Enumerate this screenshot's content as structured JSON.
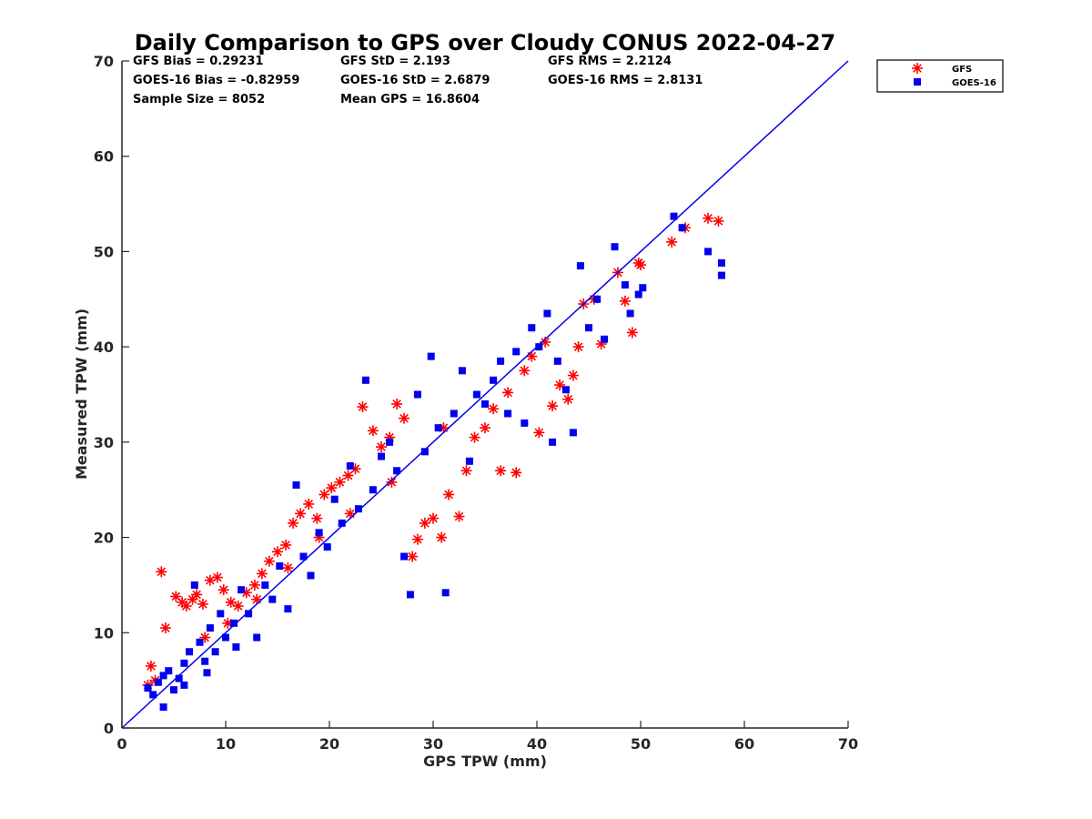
{
  "chart_data": {
    "type": "scatter",
    "title": "Daily Comparison to GPS over Cloudy CONUS 2022-04-27",
    "xlabel": "GPS TPW (mm)",
    "ylabel": "Measured TPW (mm)",
    "xlim": [
      0,
      70
    ],
    "ylim": [
      0,
      70
    ],
    "xticks": [
      "0",
      "10",
      "20",
      "30",
      "40",
      "50",
      "60",
      "70"
    ],
    "yticks": [
      "0",
      "10",
      "20",
      "30",
      "40",
      "50",
      "60",
      "70"
    ],
    "legend_position": "top-right outside",
    "reference_line": {
      "x": [
        0,
        70
      ],
      "y": [
        0,
        70
      ],
      "color": "#0000ee"
    },
    "stats": {
      "gfs_bias": "GFS Bias = 0.29231",
      "gfs_std": "GFS StD = 2.193",
      "gfs_rms": "GFS RMS = 2.2124",
      "goes_bias": "GOES-16 Bias = -0.82959",
      "goes_std": "GOES-16 StD = 2.6879",
      "goes_rms": "GOES-16 RMS = 2.8131",
      "sample_size": "Sample Size = 8052",
      "mean_gps": "Mean GPS = 16.8604"
    },
    "series": [
      {
        "name": "GFS",
        "marker": "asterisk",
        "color": "#ff0000",
        "points": [
          [
            2.5,
            4.5
          ],
          [
            2.8,
            6.5
          ],
          [
            3.2,
            5.0
          ],
          [
            3.8,
            16.4
          ],
          [
            4.2,
            10.5
          ],
          [
            5.2,
            13.8
          ],
          [
            5.8,
            13.2
          ],
          [
            6.2,
            12.8
          ],
          [
            6.8,
            13.5
          ],
          [
            7.2,
            14.0
          ],
          [
            7.8,
            13.0
          ],
          [
            8.5,
            15.5
          ],
          [
            9.2,
            15.8
          ],
          [
            9.8,
            14.5
          ],
          [
            10.5,
            13.2
          ],
          [
            11.2,
            12.8
          ],
          [
            12.0,
            14.2
          ],
          [
            12.8,
            15.0
          ],
          [
            13.5,
            16.2
          ],
          [
            14.2,
            17.5
          ],
          [
            15.0,
            18.5
          ],
          [
            15.8,
            19.2
          ],
          [
            16.5,
            21.5
          ],
          [
            17.2,
            22.5
          ],
          [
            18.0,
            23.5
          ],
          [
            18.8,
            22.0
          ],
          [
            19.5,
            24.5
          ],
          [
            20.2,
            25.2
          ],
          [
            21.0,
            25.8
          ],
          [
            21.8,
            26.5
          ],
          [
            22.5,
            27.2
          ],
          [
            23.2,
            33.7
          ],
          [
            24.2,
            31.2
          ],
          [
            25.0,
            29.5
          ],
          [
            25.8,
            30.5
          ],
          [
            26.5,
            34.0
          ],
          [
            27.2,
            32.5
          ],
          [
            28.0,
            18.0
          ],
          [
            28.5,
            19.8
          ],
          [
            29.2,
            21.5
          ],
          [
            30.0,
            22.0
          ],
          [
            30.8,
            20.0
          ],
          [
            31.5,
            24.5
          ],
          [
            32.5,
            22.2
          ],
          [
            33.2,
            27.0
          ],
          [
            34.0,
            30.5
          ],
          [
            35.0,
            31.5
          ],
          [
            35.8,
            33.5
          ],
          [
            36.5,
            27.0
          ],
          [
            37.2,
            35.2
          ],
          [
            38.0,
            26.8
          ],
          [
            38.8,
            37.5
          ],
          [
            39.5,
            39.0
          ],
          [
            40.2,
            31.0
          ],
          [
            40.8,
            40.5
          ],
          [
            41.5,
            33.8
          ],
          [
            42.2,
            36.0
          ],
          [
            43.0,
            34.5
          ],
          [
            43.5,
            37.0
          ],
          [
            44.0,
            40.0
          ],
          [
            44.5,
            44.5
          ],
          [
            45.5,
            45.0
          ],
          [
            46.2,
            40.3
          ],
          [
            47.8,
            47.8
          ],
          [
            48.5,
            44.8
          ],
          [
            49.2,
            41.5
          ],
          [
            49.8,
            48.8
          ],
          [
            50.0,
            48.6
          ],
          [
            53.0,
            51.0
          ],
          [
            54.3,
            52.5
          ],
          [
            56.5,
            53.5
          ],
          [
            57.5,
            53.2
          ],
          [
            8.0,
            9.5
          ],
          [
            10.2,
            11.0
          ],
          [
            13.0,
            13.5
          ],
          [
            16.0,
            16.8
          ],
          [
            19.0,
            20.0
          ],
          [
            22.0,
            22.5
          ],
          [
            26.0,
            25.8
          ],
          [
            31.0,
            31.5
          ]
        ]
      },
      {
        "name": "GOES-16",
        "marker": "square",
        "color": "#0000ee",
        "points": [
          [
            3.0,
            3.5
          ],
          [
            3.5,
            4.8
          ],
          [
            4.0,
            2.2
          ],
          [
            4.5,
            6.0
          ],
          [
            5.0,
            4.0
          ],
          [
            5.5,
            5.2
          ],
          [
            6.0,
            6.8
          ],
          [
            6.5,
            8.0
          ],
          [
            7.0,
            15.0
          ],
          [
            7.5,
            9.0
          ],
          [
            8.0,
            7.0
          ],
          [
            8.5,
            10.5
          ],
          [
            9.0,
            8.0
          ],
          [
            9.5,
            12.0
          ],
          [
            10.0,
            9.5
          ],
          [
            10.8,
            11.0
          ],
          [
            11.5,
            14.5
          ],
          [
            12.2,
            12.0
          ],
          [
            13.0,
            9.5
          ],
          [
            13.8,
            15.0
          ],
          [
            14.5,
            13.5
          ],
          [
            15.2,
            17.0
          ],
          [
            16.0,
            12.5
          ],
          [
            16.8,
            25.5
          ],
          [
            17.5,
            18.0
          ],
          [
            18.2,
            16.0
          ],
          [
            19.0,
            20.5
          ],
          [
            19.8,
            19.0
          ],
          [
            20.5,
            24.0
          ],
          [
            21.2,
            21.5
          ],
          [
            22.0,
            27.5
          ],
          [
            22.8,
            23.0
          ],
          [
            23.5,
            36.5
          ],
          [
            24.2,
            25.0
          ],
          [
            25.0,
            28.5
          ],
          [
            25.8,
            30.0
          ],
          [
            26.5,
            27.0
          ],
          [
            27.2,
            18.0
          ],
          [
            27.8,
            14.0
          ],
          [
            28.5,
            35.0
          ],
          [
            29.2,
            29.0
          ],
          [
            29.8,
            39.0
          ],
          [
            30.5,
            31.5
          ],
          [
            31.2,
            14.2
          ],
          [
            32.0,
            33.0
          ],
          [
            32.8,
            37.5
          ],
          [
            33.5,
            28.0
          ],
          [
            34.2,
            35.0
          ],
          [
            35.0,
            34.0
          ],
          [
            35.8,
            36.5
          ],
          [
            36.5,
            38.5
          ],
          [
            37.2,
            33.0
          ],
          [
            38.0,
            39.5
          ],
          [
            38.8,
            32.0
          ],
          [
            39.5,
            42.0
          ],
          [
            40.2,
            40.0
          ],
          [
            41.0,
            43.5
          ],
          [
            41.5,
            30.0
          ],
          [
            42.0,
            38.5
          ],
          [
            42.8,
            35.5
          ],
          [
            43.5,
            31.0
          ],
          [
            44.2,
            48.5
          ],
          [
            45.0,
            42.0
          ],
          [
            45.8,
            45.0
          ],
          [
            46.5,
            40.8
          ],
          [
            47.5,
            50.5
          ],
          [
            48.5,
            46.5
          ],
          [
            49.0,
            43.5
          ],
          [
            49.8,
            45.5
          ],
          [
            50.2,
            46.2
          ],
          [
            53.2,
            53.7
          ],
          [
            54.0,
            52.5
          ],
          [
            56.5,
            50.0
          ],
          [
            57.8,
            48.8
          ],
          [
            57.8,
            47.5
          ],
          [
            2.5,
            4.2
          ],
          [
            4.0,
            5.5
          ],
          [
            6.0,
            4.5
          ],
          [
            8.2,
            5.8
          ],
          [
            11.0,
            8.5
          ]
        ]
      }
    ]
  }
}
